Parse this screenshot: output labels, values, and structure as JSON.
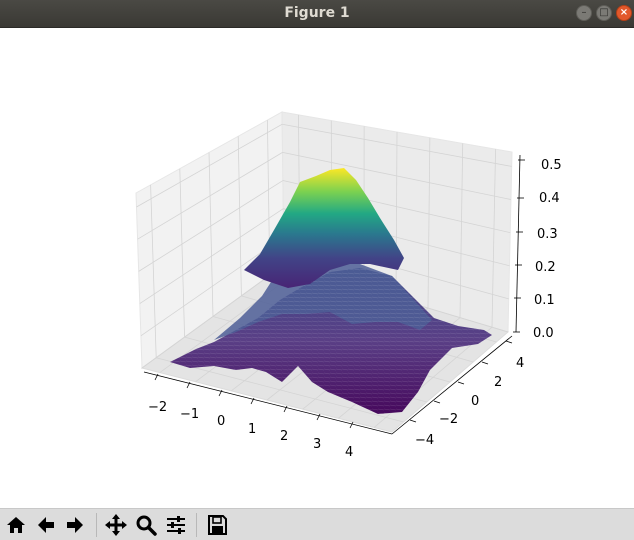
{
  "window": {
    "title": "Figure 1",
    "controls": [
      "minimize-icon",
      "maximize-icon",
      "close-icon"
    ]
  },
  "chart_data": {
    "type": "surface",
    "title": "",
    "xlabel": "",
    "ylabel": "",
    "zlabel": "",
    "x_ticks": [
      "−2",
      "−1",
      "0",
      "1",
      "2",
      "3",
      "4"
    ],
    "y_ticks": [
      "−4",
      "−2",
      "0",
      "2",
      "4"
    ],
    "z_ticks": [
      "0.0",
      "0.1",
      "0.2",
      "0.3",
      "0.4",
      "0.5"
    ],
    "xlim": [
      -2.5,
      4.5
    ],
    "ylim": [
      -5,
      5
    ],
    "zlim": [
      0,
      0.5
    ],
    "colormap": "viridis",
    "peak": {
      "z": 0.48
    },
    "grid": true
  },
  "toolbar": {
    "buttons": [
      "home-icon",
      "back-icon",
      "forward-icon",
      "pan-icon",
      "zoom-icon",
      "configure-subplots-icon",
      "save-icon"
    ]
  },
  "colors": {
    "titlebar": "#3c3b37",
    "pane": "#f2f2f2",
    "toolbar": "#dcdcdc",
    "colormap_low": "#440154",
    "colormap_mid": "#21918c",
    "colormap_high": "#fde725"
  }
}
